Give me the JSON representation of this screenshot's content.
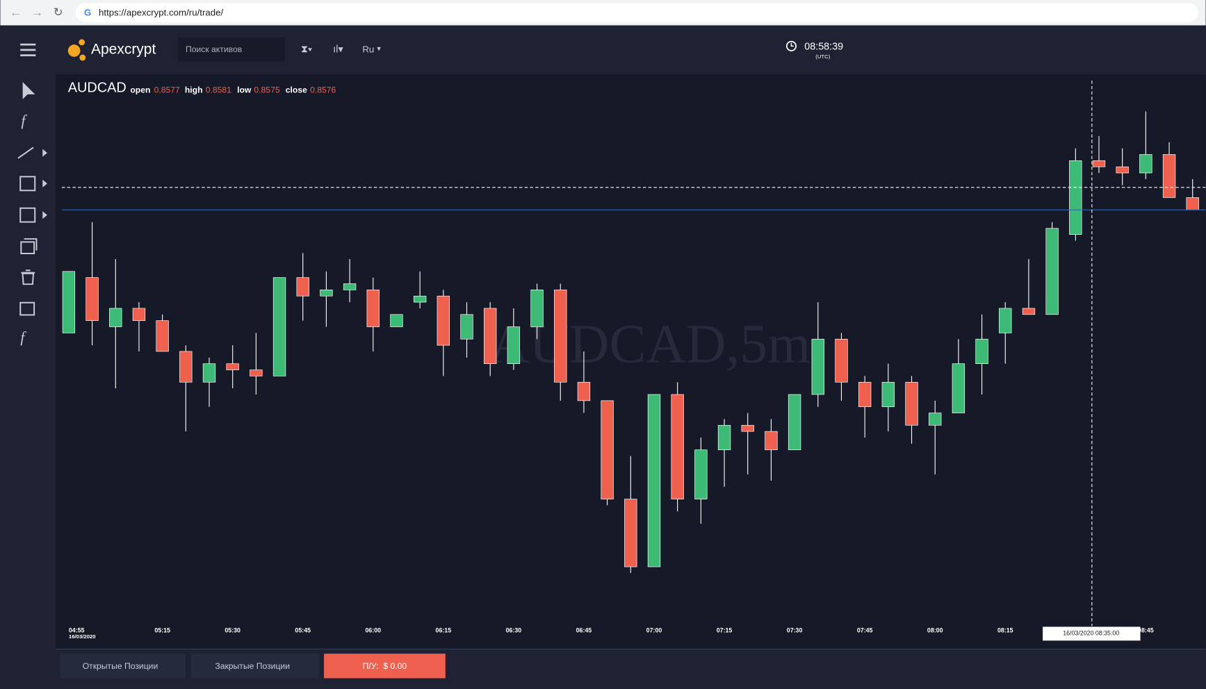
{
  "browser": {
    "url": "https://apexcrypt.com/ru/trade/"
  },
  "header": {
    "logo": "Apexcrypt",
    "search_placeholder": "Поиск активов",
    "language": "Ru",
    "clock": "08:58:39",
    "clock_zone": "(UTC)"
  },
  "footer": {
    "tabs": [
      "Открытые Позиции",
      "Закрытые Позиции"
    ],
    "pnl": "П/У:  $ 0.00"
  },
  "chart_data": {
    "type": "candlestick",
    "title": "AUDCAD",
    "watermark": "AUDCAD,5m",
    "ohlc_labels": [
      "open",
      "high",
      "low",
      "close"
    ],
    "ohlc_values": [
      0.8577,
      0.8581,
      0.8575,
      0.8576
    ],
    "date_label": "16/03/2020",
    "crosshair_label": "16/03/2020 08:35:00",
    "up_color": "#3dbb76",
    "down_color": "#f0604f",
    "price_line_color": "#2f6ab0",
    "categories": [
      "04:55",
      null,
      null,
      null,
      "05:15",
      null,
      null,
      "05:30",
      null,
      null,
      "05:45",
      null,
      null,
      "06:00",
      null,
      null,
      "06:15",
      null,
      null,
      "06:30",
      null,
      null,
      "06:45",
      null,
      null,
      "07:00",
      null,
      null,
      "07:15",
      null,
      null,
      "07:30",
      null,
      null,
      "07:45",
      null,
      null,
      "08:00",
      null,
      null,
      "08:15",
      null,
      null,
      null,
      null,
      null,
      "08:45",
      null,
      null
    ],
    "open": [
      0.8549,
      0.8558,
      0.855,
      0.8553,
      0.8551,
      0.8546,
      0.8541,
      0.8544,
      0.8543,
      0.8542,
      0.8558,
      0.8555,
      0.8556,
      0.8556,
      0.855,
      0.8554,
      0.8555,
      0.8548,
      0.8553,
      0.8544,
      0.855,
      0.8556,
      0.8541,
      0.8538,
      0.8522,
      0.8511,
      0.8539,
      0.8522,
      0.853,
      0.8534,
      0.8533,
      0.853,
      0.8539,
      0.8548,
      0.8541,
      0.8537,
      0.8541,
      0.8534,
      0.8536,
      0.8544,
      0.8549,
      0.8553,
      0.8552,
      0.8565,
      0.8577,
      0.8576,
      0.8575,
      0.8578,
      0.8571
    ],
    "high": [
      0.8559,
      0.8567,
      0.8561,
      0.8554,
      0.8552,
      0.8547,
      0.8545,
      0.8547,
      0.8549,
      0.8558,
      0.8562,
      0.8559,
      0.8561,
      0.8558,
      0.8552,
      0.8559,
      0.8556,
      0.8554,
      0.8554,
      0.8553,
      0.8557,
      0.8557,
      0.8546,
      0.8538,
      0.8529,
      0.8539,
      0.8541,
      0.8532,
      0.8535,
      0.8536,
      0.8535,
      0.8539,
      0.8554,
      0.8549,
      0.8542,
      0.8544,
      0.8542,
      0.8538,
      0.8548,
      0.8552,
      0.8554,
      0.8561,
      0.8567,
      0.8579,
      0.8581,
      0.8579,
      0.8585,
      0.858,
      0.8574
    ],
    "low": [
      0.8549,
      0.8547,
      0.854,
      0.8546,
      0.8546,
      0.8533,
      0.8537,
      0.854,
      0.8539,
      0.8542,
      0.8551,
      0.855,
      0.8554,
      0.8546,
      0.855,
      0.8553,
      0.8542,
      0.8545,
      0.8542,
      0.8543,
      0.8548,
      0.8538,
      0.8536,
      0.8521,
      0.851,
      0.8511,
      0.852,
      0.8518,
      0.8524,
      0.8526,
      0.8525,
      0.853,
      0.8537,
      0.8538,
      0.8532,
      0.8533,
      0.8531,
      0.8526,
      0.8536,
      0.8539,
      0.8544,
      0.8552,
      0.8552,
      0.8564,
      0.8575,
      0.8573,
      0.8574,
      0.8571,
      0.8569
    ],
    "close": [
      0.8559,
      0.8551,
      0.8553,
      0.8551,
      0.8546,
      0.8541,
      0.8544,
      0.8543,
      0.8542,
      0.8558,
      0.8555,
      0.8556,
      0.8557,
      0.855,
      0.8552,
      0.8555,
      0.8547,
      0.8552,
      0.8544,
      0.855,
      0.8556,
      0.8541,
      0.8538,
      0.8522,
      0.8511,
      0.8539,
      0.8522,
      0.853,
      0.8534,
      0.8533,
      0.853,
      0.8539,
      0.8548,
      0.8541,
      0.8537,
      0.8541,
      0.8534,
      0.8536,
      0.8544,
      0.8548,
      0.8553,
      0.8552,
      0.8566,
      0.8577,
      0.8576,
      0.8575,
      0.8578,
      0.8571,
      0.8569
    ],
    "ylim": [
      0.8502,
      0.859
    ]
  }
}
